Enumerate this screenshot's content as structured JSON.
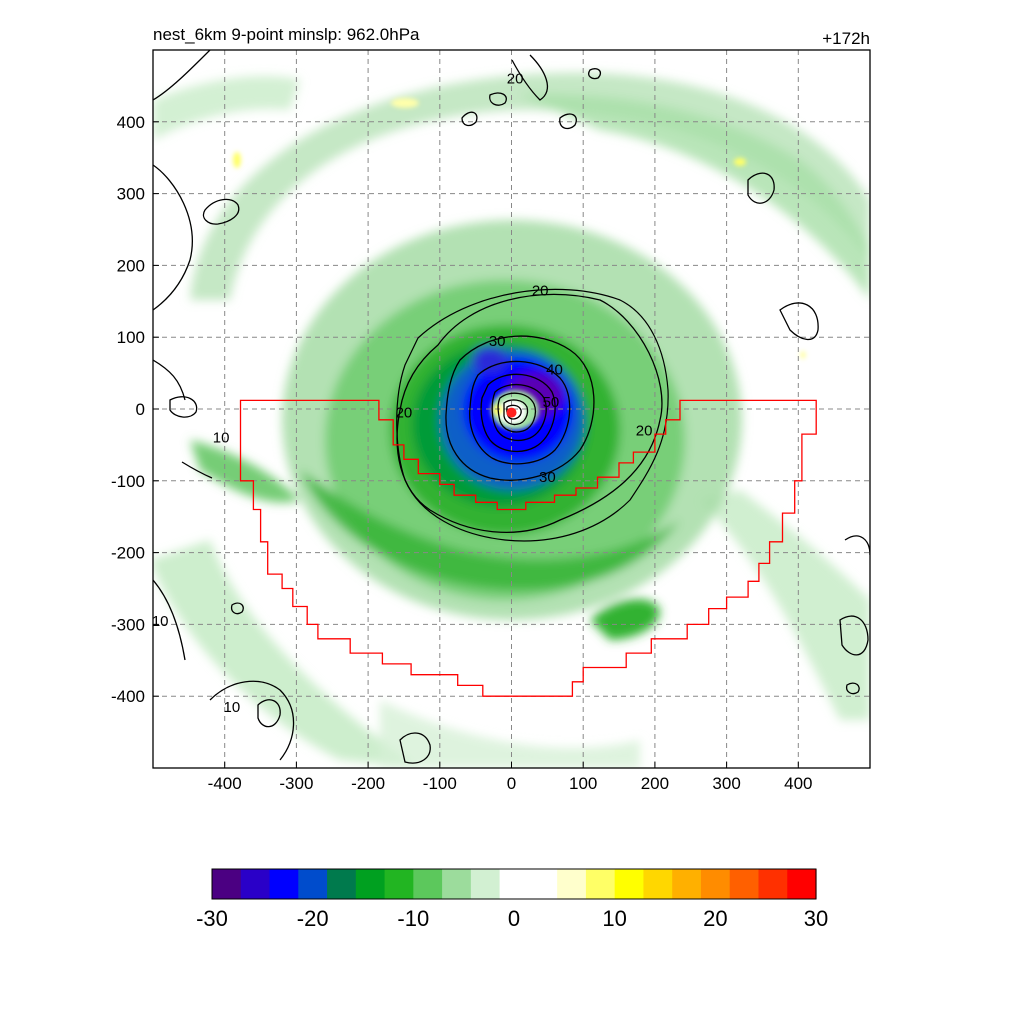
{
  "header": {
    "title": "nest_6km  9-point minslp: 962.0hPa",
    "forecast_hour": "+172h"
  },
  "chart_data": {
    "type": "heatmap",
    "title": "nest_6km  9-point minslp: 962.0hPa",
    "annotation_right": "+172h",
    "xlabel": "",
    "ylabel": "",
    "xlim": [
      -500,
      500
    ],
    "ylim": [
      -500,
      500
    ],
    "x_ticks": [
      -400,
      -300,
      -200,
      -100,
      0,
      100,
      200,
      300,
      400
    ],
    "y_ticks": [
      400,
      300,
      200,
      100,
      0,
      -100,
      -200,
      -300,
      -400
    ],
    "grid": true,
    "grid_style": "dashed",
    "storm_center": [
      0,
      -5
    ],
    "contour_labels": [
      {
        "text": "20",
        "x": 40,
        "y": 165
      },
      {
        "text": "30",
        "x": -20,
        "y": 95
      },
      {
        "text": "40",
        "x": 60,
        "y": 55
      },
      {
        "text": "50",
        "x": 55,
        "y": 10
      },
      {
        "text": "30",
        "x": 50,
        "y": -95
      },
      {
        "text": "20",
        "x": -150,
        "y": -5
      },
      {
        "text": "20",
        "x": 185,
        "y": -30
      },
      {
        "text": "20",
        "x": 5,
        "y": 460
      },
      {
        "text": "10",
        "x": -405,
        "y": -40
      },
      {
        "text": "10",
        "x": -490,
        "y": -295
      },
      {
        "text": "10",
        "x": -390,
        "y": -415
      }
    ],
    "colorbar": {
      "min": -30,
      "max": 30,
      "tick_labels": [
        "-30",
        "-20",
        "-10",
        "0",
        "10",
        "20",
        "30"
      ],
      "tick_values": [
        -30,
        -20,
        -10,
        0,
        10,
        20,
        30
      ],
      "colors": [
        "#4b0082",
        "#2a00c8",
        "#0000ff",
        "#004ccc",
        "#007a4d",
        "#00a020",
        "#22b522",
        "#5cc85c",
        "#9cdc9c",
        "#d2f0d2",
        "#ffffff",
        "#ffffff",
        "#ffffcc",
        "#ffff66",
        "#ffff00",
        "#ffd700",
        "#ffb000",
        "#ff8c00",
        "#ff6000",
        "#ff3000",
        "#ff0000"
      ]
    }
  },
  "colors": {
    "inner_domain_outline": "#ff0000",
    "contour_line": "#000000",
    "grid_line": "#888888"
  }
}
